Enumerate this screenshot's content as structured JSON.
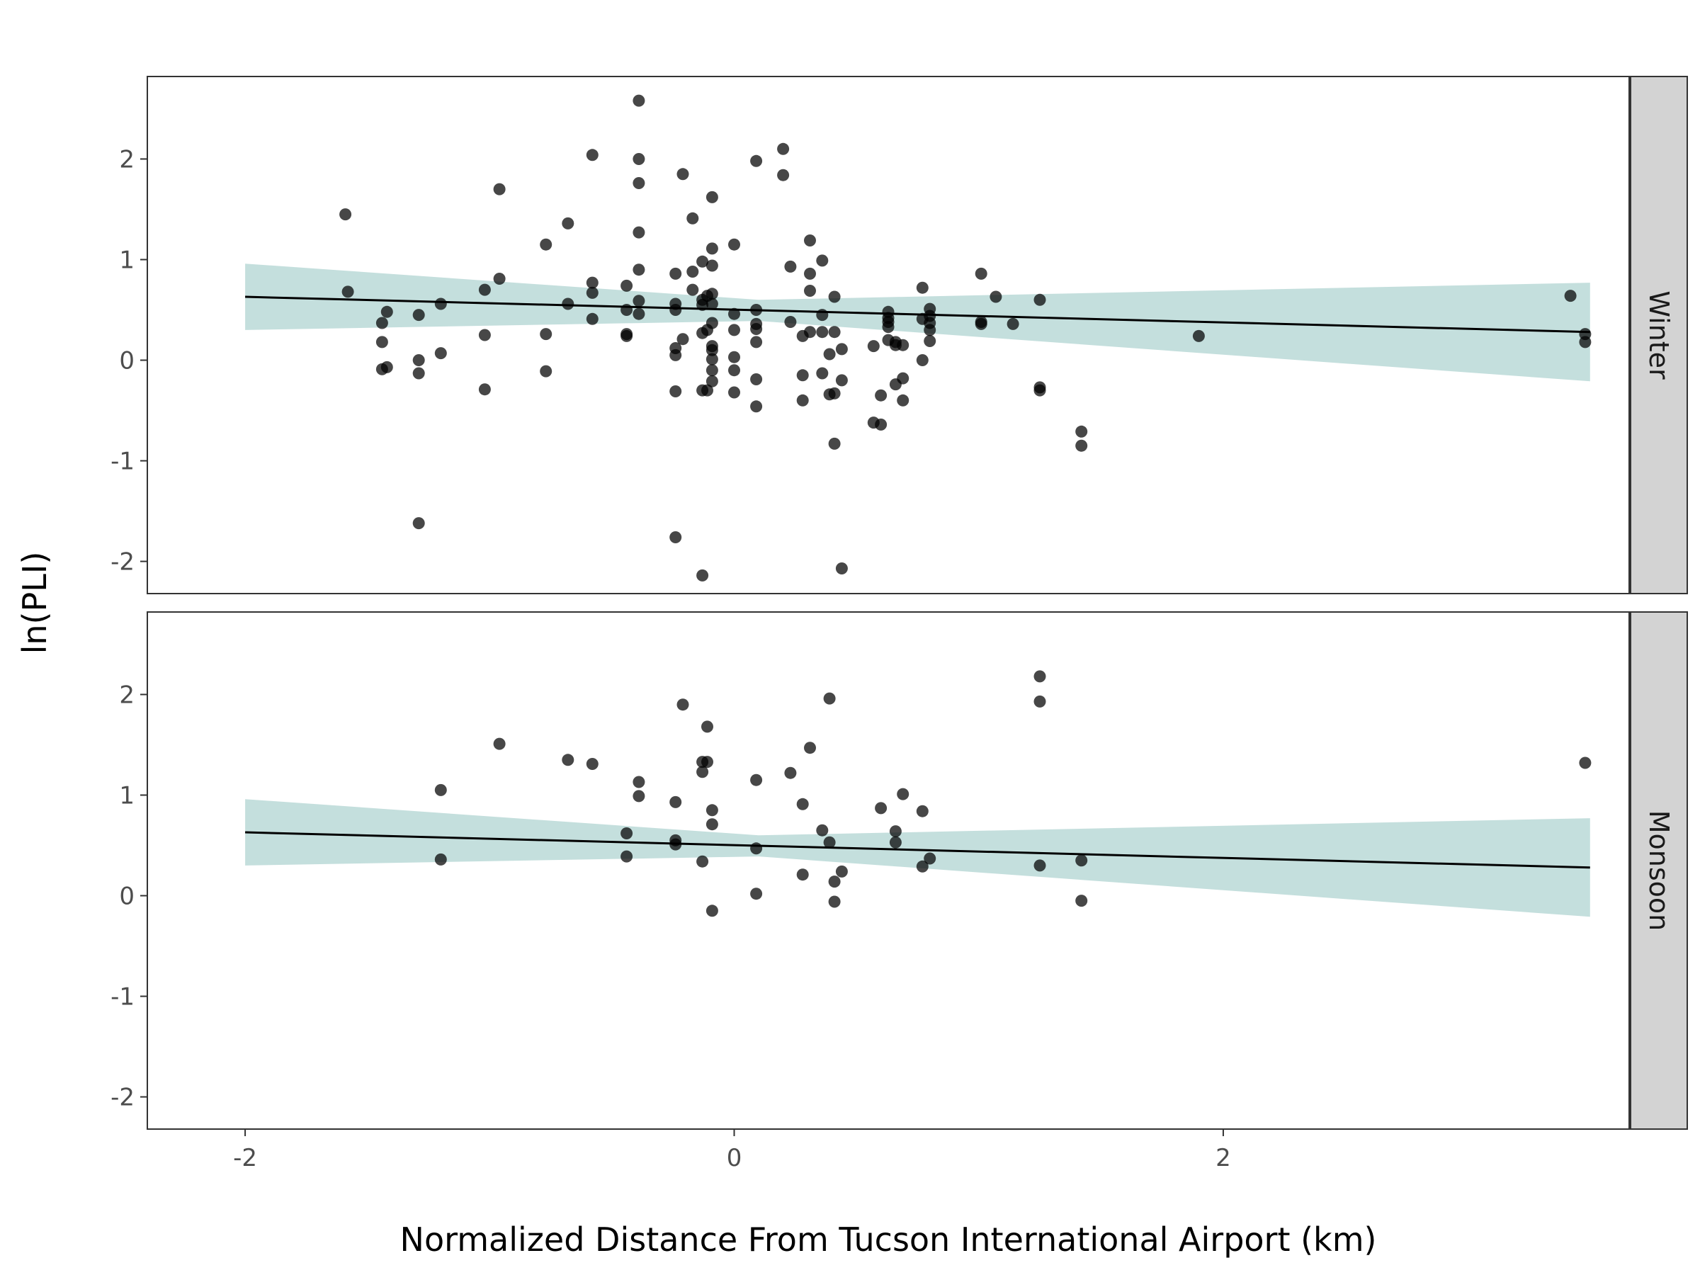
{
  "chart_data": {
    "type": "scatter",
    "xlabel": "Normalized Distance From Tucson International Airport (km)",
    "ylabel": "ln(PLI)",
    "xlim": [
      -2.4,
      3.66
    ],
    "ylim": [
      -2.32,
      2.82
    ],
    "x_ticks": [
      -2,
      0,
      2
    ],
    "y_ticks": [
      -2,
      -1,
      0,
      1,
      2
    ],
    "x_tick_labels": [
      "-2",
      "0",
      "2"
    ],
    "y_tick_labels": [
      "-2",
      "-1",
      "0",
      "1",
      "2"
    ],
    "grid": false,
    "colors": {
      "points": "#000000",
      "ribbon": "#b0d4d2",
      "fit_line": "#000000",
      "strip": "#d3d3d3"
    },
    "facets": [
      {
        "label": "Winter",
        "fit": {
          "x": [
            -2.0,
            3.5
          ],
          "y": [
            0.63,
            0.28
          ],
          "ribbon_lower": [
            0.3,
            -0.21
          ],
          "ribbon_upper": [
            0.96,
            0.77
          ],
          "ribbon_mid_x": 0.1,
          "ribbon_mid_lower": 0.39,
          "ribbon_mid_upper": 0.6
        },
        "points": [
          [
            -1.59,
            1.45
          ],
          [
            -1.58,
            0.68
          ],
          [
            -1.44,
            0.37
          ],
          [
            -1.42,
            0.48
          ],
          [
            -1.44,
            0.18
          ],
          [
            -1.44,
            -0.09
          ],
          [
            -1.42,
            -0.07
          ],
          [
            -1.29,
            0.45
          ],
          [
            -1.29,
            0.0
          ],
          [
            -1.29,
            -0.13
          ],
          [
            -1.29,
            -1.62
          ],
          [
            -1.2,
            0.56
          ],
          [
            -1.2,
            0.07
          ],
          [
            -1.02,
            0.7
          ],
          [
            -1.02,
            0.25
          ],
          [
            -1.02,
            -0.29
          ],
          [
            -0.96,
            1.7
          ],
          [
            -0.96,
            0.81
          ],
          [
            -0.77,
            1.15
          ],
          [
            -0.77,
            0.26
          ],
          [
            -0.77,
            -0.11
          ],
          [
            -0.68,
            1.36
          ],
          [
            -0.68,
            0.56
          ],
          [
            -0.58,
            2.04
          ],
          [
            -0.58,
            0.77
          ],
          [
            -0.58,
            0.67
          ],
          [
            -0.58,
            0.41
          ],
          [
            -0.44,
            0.74
          ],
          [
            -0.44,
            0.5
          ],
          [
            -0.44,
            0.26
          ],
          [
            -0.44,
            0.24
          ],
          [
            -0.39,
            2.58
          ],
          [
            -0.39,
            2.0
          ],
          [
            -0.39,
            1.76
          ],
          [
            -0.39,
            1.27
          ],
          [
            -0.39,
            0.9
          ],
          [
            -0.39,
            0.59
          ],
          [
            -0.39,
            0.46
          ],
          [
            -0.24,
            0.86
          ],
          [
            -0.24,
            0.56
          ],
          [
            -0.24,
            0.5
          ],
          [
            -0.24,
            0.12
          ],
          [
            -0.24,
            0.05
          ],
          [
            -0.24,
            -0.31
          ],
          [
            -0.24,
            -1.76
          ],
          [
            -0.21,
            1.85
          ],
          [
            -0.21,
            0.21
          ],
          [
            -0.17,
            1.41
          ],
          [
            -0.17,
            0.88
          ],
          [
            -0.17,
            0.7
          ],
          [
            -0.13,
            0.98
          ],
          [
            -0.13,
            0.6
          ],
          [
            -0.13,
            0.55
          ],
          [
            -0.13,
            0.27
          ],
          [
            -0.13,
            -0.3
          ],
          [
            -0.13,
            -2.14
          ],
          [
            -0.11,
            0.64
          ],
          [
            -0.11,
            0.3
          ],
          [
            -0.11,
            -0.3
          ],
          [
            -0.09,
            1.62
          ],
          [
            -0.09,
            1.11
          ],
          [
            -0.09,
            0.94
          ],
          [
            -0.09,
            0.66
          ],
          [
            -0.09,
            0.56
          ],
          [
            -0.09,
            0.37
          ],
          [
            -0.09,
            0.14
          ],
          [
            -0.09,
            0.1
          ],
          [
            -0.09,
            0.01
          ],
          [
            -0.09,
            -0.1
          ],
          [
            -0.09,
            -0.21
          ],
          [
            0.0,
            1.15
          ],
          [
            0.0,
            0.46
          ],
          [
            0.0,
            0.3
          ],
          [
            0.0,
            0.03
          ],
          [
            0.0,
            -0.1
          ],
          [
            0.0,
            -0.32
          ],
          [
            0.09,
            1.98
          ],
          [
            0.09,
            0.5
          ],
          [
            0.09,
            0.36
          ],
          [
            0.09,
            0.31
          ],
          [
            0.09,
            0.18
          ],
          [
            0.09,
            -0.19
          ],
          [
            0.09,
            -0.46
          ],
          [
            0.2,
            2.1
          ],
          [
            0.2,
            1.84
          ],
          [
            0.23,
            0.93
          ],
          [
            0.23,
            0.38
          ],
          [
            0.28,
            0.24
          ],
          [
            0.28,
            -0.15
          ],
          [
            0.28,
            -0.4
          ],
          [
            0.31,
            1.19
          ],
          [
            0.31,
            0.86
          ],
          [
            0.31,
            0.69
          ],
          [
            0.31,
            0.28
          ],
          [
            0.36,
            0.99
          ],
          [
            0.36,
            0.45
          ],
          [
            0.36,
            0.28
          ],
          [
            0.36,
            -0.13
          ],
          [
            0.39,
            0.06
          ],
          [
            0.39,
            -0.34
          ],
          [
            0.41,
            0.63
          ],
          [
            0.41,
            0.28
          ],
          [
            0.41,
            -0.33
          ],
          [
            0.41,
            -0.83
          ],
          [
            0.44,
            0.11
          ],
          [
            0.44,
            -0.2
          ],
          [
            0.44,
            -2.07
          ],
          [
            0.57,
            0.14
          ],
          [
            0.57,
            -0.62
          ],
          [
            0.6,
            -0.35
          ],
          [
            0.6,
            -0.64
          ],
          [
            0.63,
            0.48
          ],
          [
            0.63,
            0.42
          ],
          [
            0.63,
            0.38
          ],
          [
            0.63,
            0.33
          ],
          [
            0.63,
            0.2
          ],
          [
            0.66,
            0.18
          ],
          [
            0.66,
            0.15
          ],
          [
            0.66,
            -0.24
          ],
          [
            0.69,
            0.15
          ],
          [
            0.69,
            -0.18
          ],
          [
            0.69,
            -0.4
          ],
          [
            0.77,
            0.72
          ],
          [
            0.77,
            0.41
          ],
          [
            0.77,
            0.0
          ],
          [
            0.8,
            0.51
          ],
          [
            0.8,
            0.44
          ],
          [
            0.8,
            0.37
          ],
          [
            0.8,
            0.3
          ],
          [
            0.8,
            0.19
          ],
          [
            1.01,
            0.86
          ],
          [
            1.01,
            0.38
          ],
          [
            1.01,
            0.36
          ],
          [
            1.07,
            0.63
          ],
          [
            1.14,
            0.36
          ],
          [
            1.25,
            0.6
          ],
          [
            1.25,
            -0.27
          ],
          [
            1.25,
            -0.3
          ],
          [
            1.42,
            -0.71
          ],
          [
            1.42,
            -0.85
          ],
          [
            1.9,
            0.24
          ],
          [
            3.42,
            0.64
          ],
          [
            3.48,
            0.26
          ],
          [
            3.48,
            0.18
          ]
        ]
      },
      {
        "label": "Monsoon",
        "fit": {
          "x": [
            -2.0,
            3.5
          ],
          "y": [
            0.63,
            0.28
          ],
          "ribbon_lower": [
            0.3,
            -0.21
          ],
          "ribbon_upper": [
            0.96,
            0.77
          ],
          "ribbon_mid_x": 0.1,
          "ribbon_mid_lower": 0.39,
          "ribbon_mid_upper": 0.6
        },
        "points": [
          [
            -1.2,
            1.05
          ],
          [
            -1.2,
            0.36
          ],
          [
            -0.96,
            1.51
          ],
          [
            -0.68,
            1.35
          ],
          [
            -0.58,
            1.31
          ],
          [
            -0.44,
            0.62
          ],
          [
            -0.44,
            0.39
          ],
          [
            -0.39,
            1.13
          ],
          [
            -0.39,
            0.99
          ],
          [
            -0.24,
            0.93
          ],
          [
            -0.24,
            0.55
          ],
          [
            -0.24,
            0.51
          ],
          [
            -0.21,
            1.9
          ],
          [
            -0.13,
            1.33
          ],
          [
            -0.13,
            1.23
          ],
          [
            -0.13,
            0.34
          ],
          [
            -0.11,
            1.68
          ],
          [
            -0.11,
            1.33
          ],
          [
            -0.09,
            0.85
          ],
          [
            -0.09,
            0.71
          ],
          [
            -0.09,
            -0.15
          ],
          [
            0.09,
            1.15
          ],
          [
            0.09,
            0.47
          ],
          [
            0.09,
            0.02
          ],
          [
            0.23,
            1.22
          ],
          [
            0.28,
            0.91
          ],
          [
            0.28,
            0.21
          ],
          [
            0.31,
            1.47
          ],
          [
            0.36,
            0.65
          ],
          [
            0.39,
            1.96
          ],
          [
            0.39,
            0.53
          ],
          [
            0.41,
            0.14
          ],
          [
            0.41,
            -0.06
          ],
          [
            0.44,
            0.24
          ],
          [
            0.6,
            0.87
          ],
          [
            0.66,
            0.64
          ],
          [
            0.66,
            0.53
          ],
          [
            0.69,
            1.01
          ],
          [
            0.77,
            0.84
          ],
          [
            0.77,
            0.29
          ],
          [
            0.8,
            0.37
          ],
          [
            1.25,
            2.18
          ],
          [
            1.25,
            1.93
          ],
          [
            1.25,
            0.3
          ],
          [
            1.42,
            0.35
          ],
          [
            1.42,
            -0.05
          ],
          [
            3.48,
            1.32
          ]
        ]
      }
    ]
  }
}
